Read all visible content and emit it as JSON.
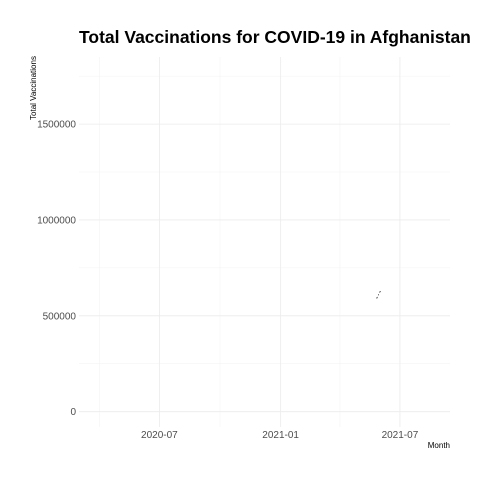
{
  "chart_data": {
    "type": "line",
    "title": "Total Vaccinations for COVID-19 in Afghanistan",
    "xlabel": "Month",
    "ylabel": "Total Vaccinations",
    "x_axis": {
      "type": "date",
      "range": [
        "2020-03-01",
        "2021-09-15"
      ],
      "ticks": [
        {
          "value": "2020-07-01",
          "label": "2020-07"
        },
        {
          "value": "2021-01-01",
          "label": "2021-01"
        },
        {
          "value": "2021-07-01",
          "label": "2021-07"
        }
      ],
      "minor_ticks": [
        "2020-04-01",
        "2020-10-01",
        "2021-04-01"
      ]
    },
    "y_axis": {
      "range": [
        -80000,
        1850000
      ],
      "ticks": [
        {
          "value": 0,
          "label": "0"
        },
        {
          "value": 500000,
          "label": "500000"
        },
        {
          "value": 1000000,
          "label": "1000000"
        },
        {
          "value": 1500000,
          "label": "1500000"
        }
      ],
      "minor_ticks": [
        250000,
        750000,
        1250000,
        1750000
      ]
    },
    "grid": true,
    "series": [
      {
        "color": "#000000",
        "points": [
          {
            "x": "2021-05-27",
            "y": 593000
          },
          {
            "x": "2021-06-01",
            "y": 626000
          }
        ]
      }
    ]
  }
}
